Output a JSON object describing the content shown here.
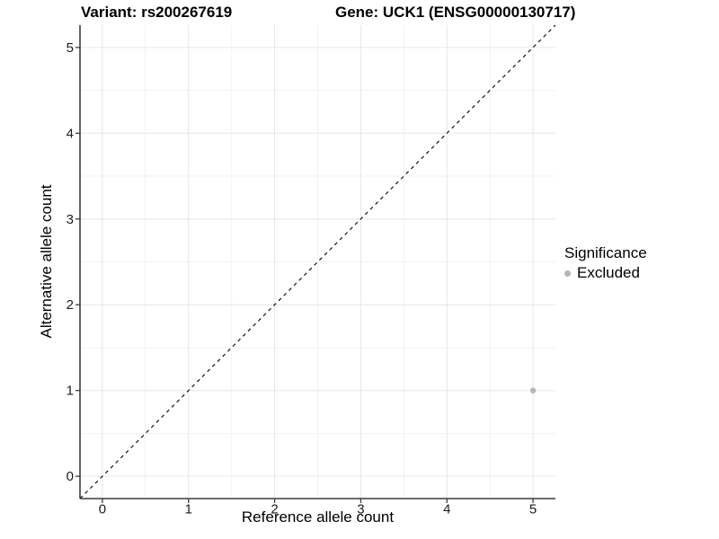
{
  "titles": {
    "variant": "Variant: rs200267619",
    "gene": "Gene: UCK1 (ENSG00000130717)"
  },
  "legend": {
    "title": "Significance",
    "items": [
      {
        "label": "Excluded",
        "color": "#b5b5b5"
      }
    ]
  },
  "colors": {
    "point": "#b5b5b5",
    "grid_major": "#e6e6e6",
    "grid_minor": "#f2f2f2",
    "axis_line": "#3c3c3c",
    "tick_label": "#1a1a1a",
    "reference_line": "#000000",
    "background": "#ffffff"
  },
  "chart_data": {
    "type": "scatter",
    "title": "Variant: rs200267619 | Gene: UCK1 (ENSG00000130717)",
    "xlabel": "Reference allele count",
    "ylabel": "Alternative allele count",
    "xlim": [
      -0.26,
      5.26
    ],
    "ylim": [
      -0.26,
      5.26
    ],
    "x_ticks": [
      0,
      1,
      2,
      3,
      4,
      5
    ],
    "y_ticks": [
      0,
      1,
      2,
      3,
      4,
      5
    ],
    "grid": "major+minor",
    "legend_position": "right",
    "series": [
      {
        "name": "Excluded",
        "color": "#b5b5b5",
        "points": [
          {
            "x": 5,
            "y": 1
          }
        ]
      }
    ],
    "reference_line": {
      "slope": 1,
      "intercept": 0,
      "style": "dashed"
    }
  }
}
